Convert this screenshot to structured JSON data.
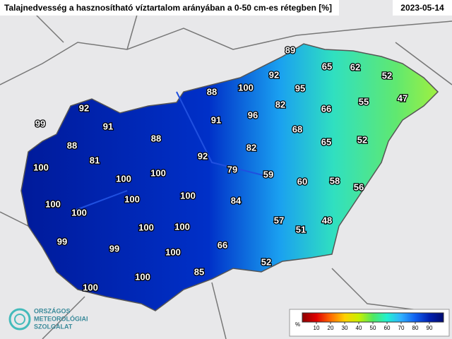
{
  "header": {
    "title": "Talajnedvesség a hasznosítható víztartalom arányában a 0-50 cm-es rétegben [%]",
    "date": "2023-05-14"
  },
  "stations": {
    "values": [
      89,
      65,
      62,
      52,
      92,
      100,
      88,
      95,
      47,
      92,
      66,
      55,
      82,
      96,
      99,
      91,
      91,
      68,
      88,
      88,
      65,
      52,
      81,
      82,
      92,
      100,
      100,
      100,
      79,
      59,
      60,
      58,
      56,
      100,
      100,
      100,
      84,
      100,
      57,
      51,
      48,
      100,
      100,
      99,
      99,
      66,
      100,
      52,
      85,
      100,
      100
    ]
  },
  "legend": {
    "unit": "%",
    "lim": [
      0,
      100
    ],
    "ticks": [
      10,
      20,
      30,
      40,
      50,
      60,
      70,
      80,
      90
    ],
    "colors": [
      "#8b0000",
      "#e00000",
      "#ff6a00",
      "#ffd000",
      "#c8f000",
      "#50e860",
      "#20f0d0",
      "#30b0ff",
      "#1060f0",
      "#0020b0",
      "#000a70"
    ]
  },
  "logo": {
    "lines": [
      "ORSZÁGOS",
      "METEOROLÓGIAI",
      "SZOLGÁLAT"
    ]
  }
}
